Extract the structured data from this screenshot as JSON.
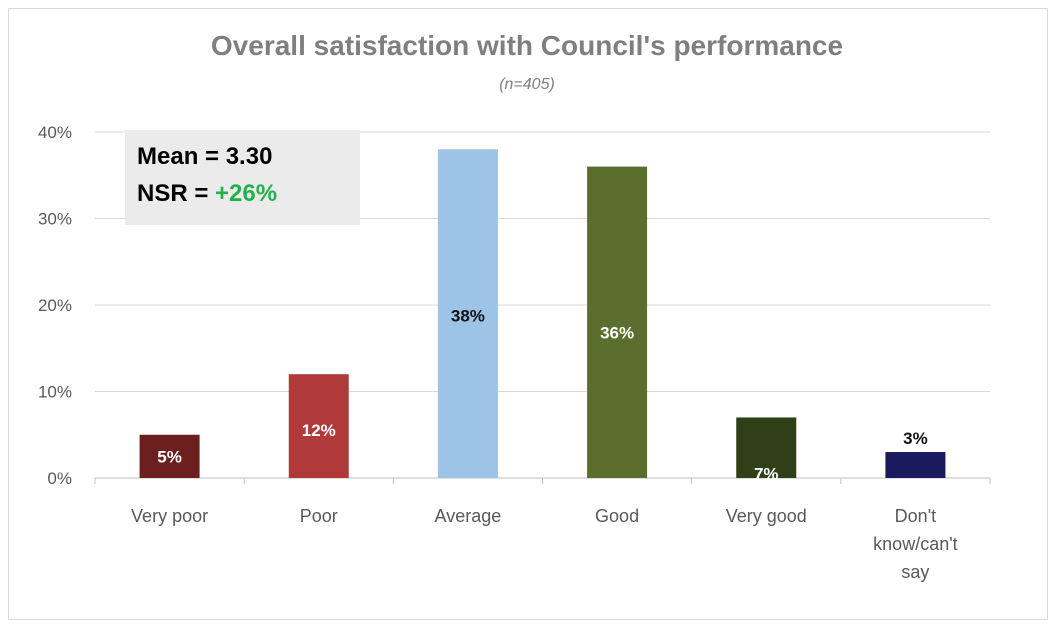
{
  "chart_data": {
    "type": "bar",
    "title": "Overall satisfaction with Council's performance",
    "subtitle": "(n=405)",
    "categories": [
      "Very poor",
      "Poor",
      "Average",
      "Good",
      "Very good",
      "Don't know/can't say"
    ],
    "values": [
      5,
      12,
      38,
      36,
      7,
      3
    ],
    "value_labels": [
      "5%",
      "12%",
      "38%",
      "36%",
      "7%",
      "3%"
    ],
    "bar_colors": [
      "#6b1f1f",
      "#b03a3a",
      "#9dc3e6",
      "#5a6e2d",
      "#2f3f18",
      "#1a1a5e"
    ],
    "label_colors": [
      "#ffffff",
      "#ffffff",
      "#111111",
      "#ffffff",
      "#ffffff",
      "#111111"
    ],
    "ylim": [
      0,
      40
    ],
    "yticks": [
      0,
      10,
      20,
      30,
      40
    ],
    "ytick_labels": [
      "0%",
      "10%",
      "20%",
      "30%",
      "40%"
    ],
    "grid": true,
    "legend": "none"
  },
  "stats": {
    "mean_label": "Mean = 3.30",
    "nsr_prefix": "NSR = ",
    "nsr_value": "+26%",
    "nsr_color": "#22b24c"
  }
}
